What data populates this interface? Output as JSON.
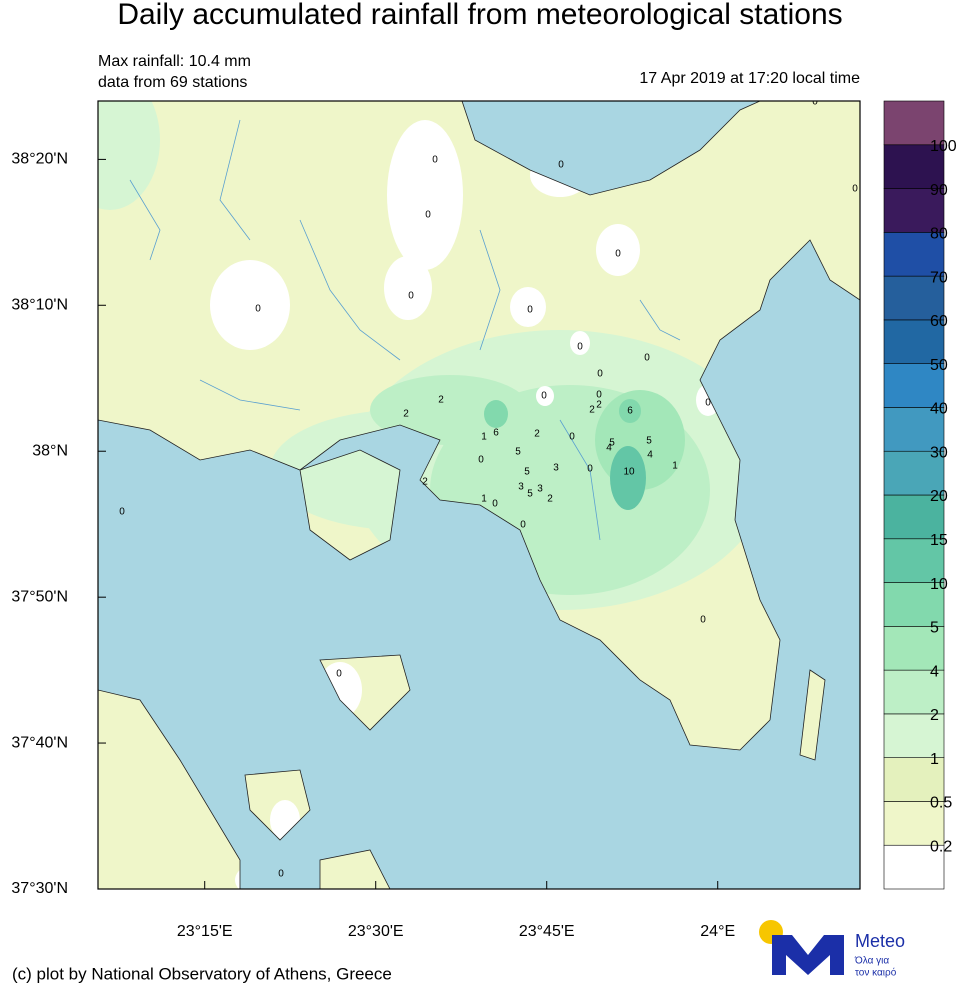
{
  "header": {
    "title": "Daily accumulated rainfall from meteorological stations",
    "max_rainfall": "Max rainfall: 10.4 mm",
    "stations": "data from 69 stations",
    "timestamp": "17 Apr 2019 at 17:20 local time"
  },
  "map": {
    "xlim": [
      23.094,
      24.208
    ],
    "ylim": [
      37.5,
      38.4
    ],
    "lat_ticks": [
      {
        "value": 38.3333,
        "label": "38°20'N"
      },
      {
        "value": 38.1667,
        "label": "38°10'N"
      },
      {
        "value": 38,
        "label": "38°N"
      },
      {
        "value": 37.8333,
        "label": "37°50'N"
      },
      {
        "value": 37.6667,
        "label": "37°40'N"
      },
      {
        "value": 37.5,
        "label": "37°30'N"
      }
    ],
    "lon_ticks": [
      {
        "value": 23.25,
        "label": "23°15'E"
      },
      {
        "value": 23.5,
        "label": "23°30'E"
      },
      {
        "value": 23.75,
        "label": "23°45'E"
      },
      {
        "value": 24,
        "label": "24°E"
      }
    ],
    "station_values": [
      0,
      0,
      0,
      0,
      0,
      0,
      0,
      0,
      0,
      0,
      0,
      2,
      2,
      0,
      2,
      2,
      6,
      6,
      0,
      1,
      2,
      0,
      5,
      5,
      4,
      4,
      5,
      0,
      3,
      5,
      0,
      10,
      1,
      3,
      3,
      5,
      2,
      2,
      1,
      0,
      0,
      0,
      0,
      0,
      0,
      0,
      0
    ]
  },
  "colorbar": {
    "levels": [
      0.2,
      0.5,
      1,
      2,
      4,
      5,
      10,
      15,
      20,
      30,
      40,
      50,
      60,
      70,
      80,
      90,
      100
    ],
    "colors": [
      "#ffffff",
      "#eff6c9",
      "#e4f1bd",
      "#d6f5d3",
      "#bdefc6",
      "#a3e7b8",
      "#82d9ad",
      "#63c6a6",
      "#4bb39f",
      "#4aa6b7",
      "#4199c0",
      "#2f87c4",
      "#2168a3",
      "#255f9c",
      "#1f4fa6",
      "#3a1a5c",
      "#2d1250",
      "#7b446f"
    ]
  },
  "footer": {
    "credit": "(c) plot by National Observatory of Athens, Greece",
    "logo": "Meteo",
    "tagline_1": "Όλα για",
    "tagline_2": "τον καιρό"
  }
}
